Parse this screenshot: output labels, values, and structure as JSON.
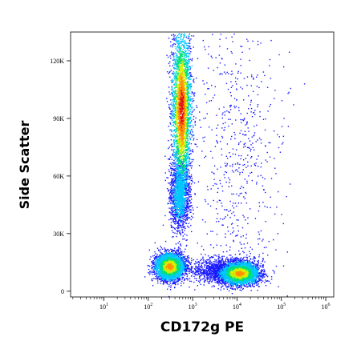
{
  "chart_data": {
    "type": "scatter",
    "subtype": "flow-cytometry-density-dot-plot",
    "title": "",
    "xlabel": "CD172g PE",
    "ylabel": "Side Scatter",
    "x_scale": "log",
    "xlim": [
      1,
      1000000
    ],
    "ylim": [
      -3000,
      135000
    ],
    "x_ticks": [
      {
        "base": "10",
        "exp": "1",
        "value": 10
      },
      {
        "base": "10",
        "exp": "2",
        "value": 100
      },
      {
        "base": "10",
        "exp": "3",
        "value": 1000
      },
      {
        "base": "10",
        "exp": "4",
        "value": 10000
      },
      {
        "base": "10",
        "exp": "5",
        "value": 100000
      },
      {
        "base": "10",
        "exp": "6",
        "value": 1000000
      }
    ],
    "y_ticks": [
      {
        "label": "0",
        "value": 0
      },
      {
        "label": "30K",
        "value": 30000
      },
      {
        "label": "60K",
        "value": 60000
      },
      {
        "label": "90K",
        "value": 90000
      },
      {
        "label": "120K",
        "value": 120000
      }
    ],
    "grid": false,
    "color_scale": [
      "#1a1aff",
      "#00c8ff",
      "#00e07a",
      "#d8f000",
      "#ff9000",
      "#e01010"
    ],
    "populations": [
      {
        "x_center": 550,
        "y_center": 95000,
        "y_spread": 22000,
        "x_log_spread": 0.11,
        "density": "high",
        "peak": "red"
      },
      {
        "x_center": 500,
        "y_center": 50000,
        "y_spread": 9000,
        "x_log_spread": 0.11,
        "density": "medium",
        "peak": "cyan"
      },
      {
        "x_center": 300,
        "y_center": 13000,
        "y_spread": 3500,
        "x_log_spread": 0.17,
        "density": "high",
        "peak": "orange"
      },
      {
        "x_center": 11000,
        "y_center": 9500,
        "y_spread": 3000,
        "x_log_spread": 0.22,
        "density": "high",
        "peak": "orange"
      },
      {
        "x_center": 5000,
        "y_center": 11000,
        "y_spread": 3000,
        "x_log_spread": 0.35,
        "density": "medium",
        "peak": "blue"
      },
      {
        "x_center": 10000,
        "y_center": 75000,
        "y_spread": 45000,
        "x_log_spread": 0.5,
        "density": "sparse",
        "peak": "blue"
      }
    ]
  }
}
